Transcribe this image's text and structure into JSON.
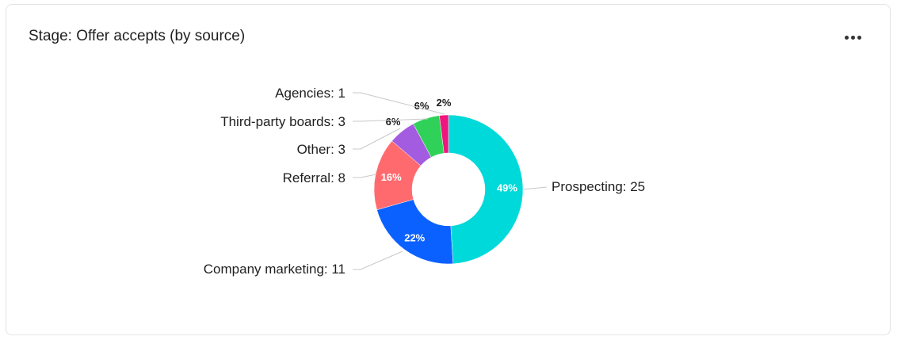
{
  "card": {
    "title": "Stage: Offer accepts (by source)",
    "menu_icon": "more-horizontal-icon"
  },
  "chart_data": {
    "type": "pie",
    "variant": "donut",
    "title": "Stage: Offer accepts (by source)",
    "start": "top",
    "direction": "clockwise",
    "slices": [
      {
        "name": "Prospecting",
        "value": 25,
        "percent": "49%",
        "label": "Prospecting: 25",
        "color": "#00d9d9"
      },
      {
        "name": "Company marketing",
        "value": 11,
        "percent": "22%",
        "label": "Company marketing: 11",
        "color": "#0b61ff"
      },
      {
        "name": "Referral",
        "value": 8,
        "percent": "16%",
        "label": "Referral: 8",
        "color": "#ff6a6e"
      },
      {
        "name": "Other",
        "value": 3,
        "percent": "6%",
        "label": "Other: 3",
        "color": "#a35ce0"
      },
      {
        "name": "Third-party boards",
        "value": 3,
        "percent": "6%",
        "label": "Third-party boards: 3",
        "color": "#30d158"
      },
      {
        "name": "Agencies",
        "value": 1,
        "percent": "2%",
        "label": "Agencies: 1",
        "color": "#f0157f"
      }
    ]
  }
}
